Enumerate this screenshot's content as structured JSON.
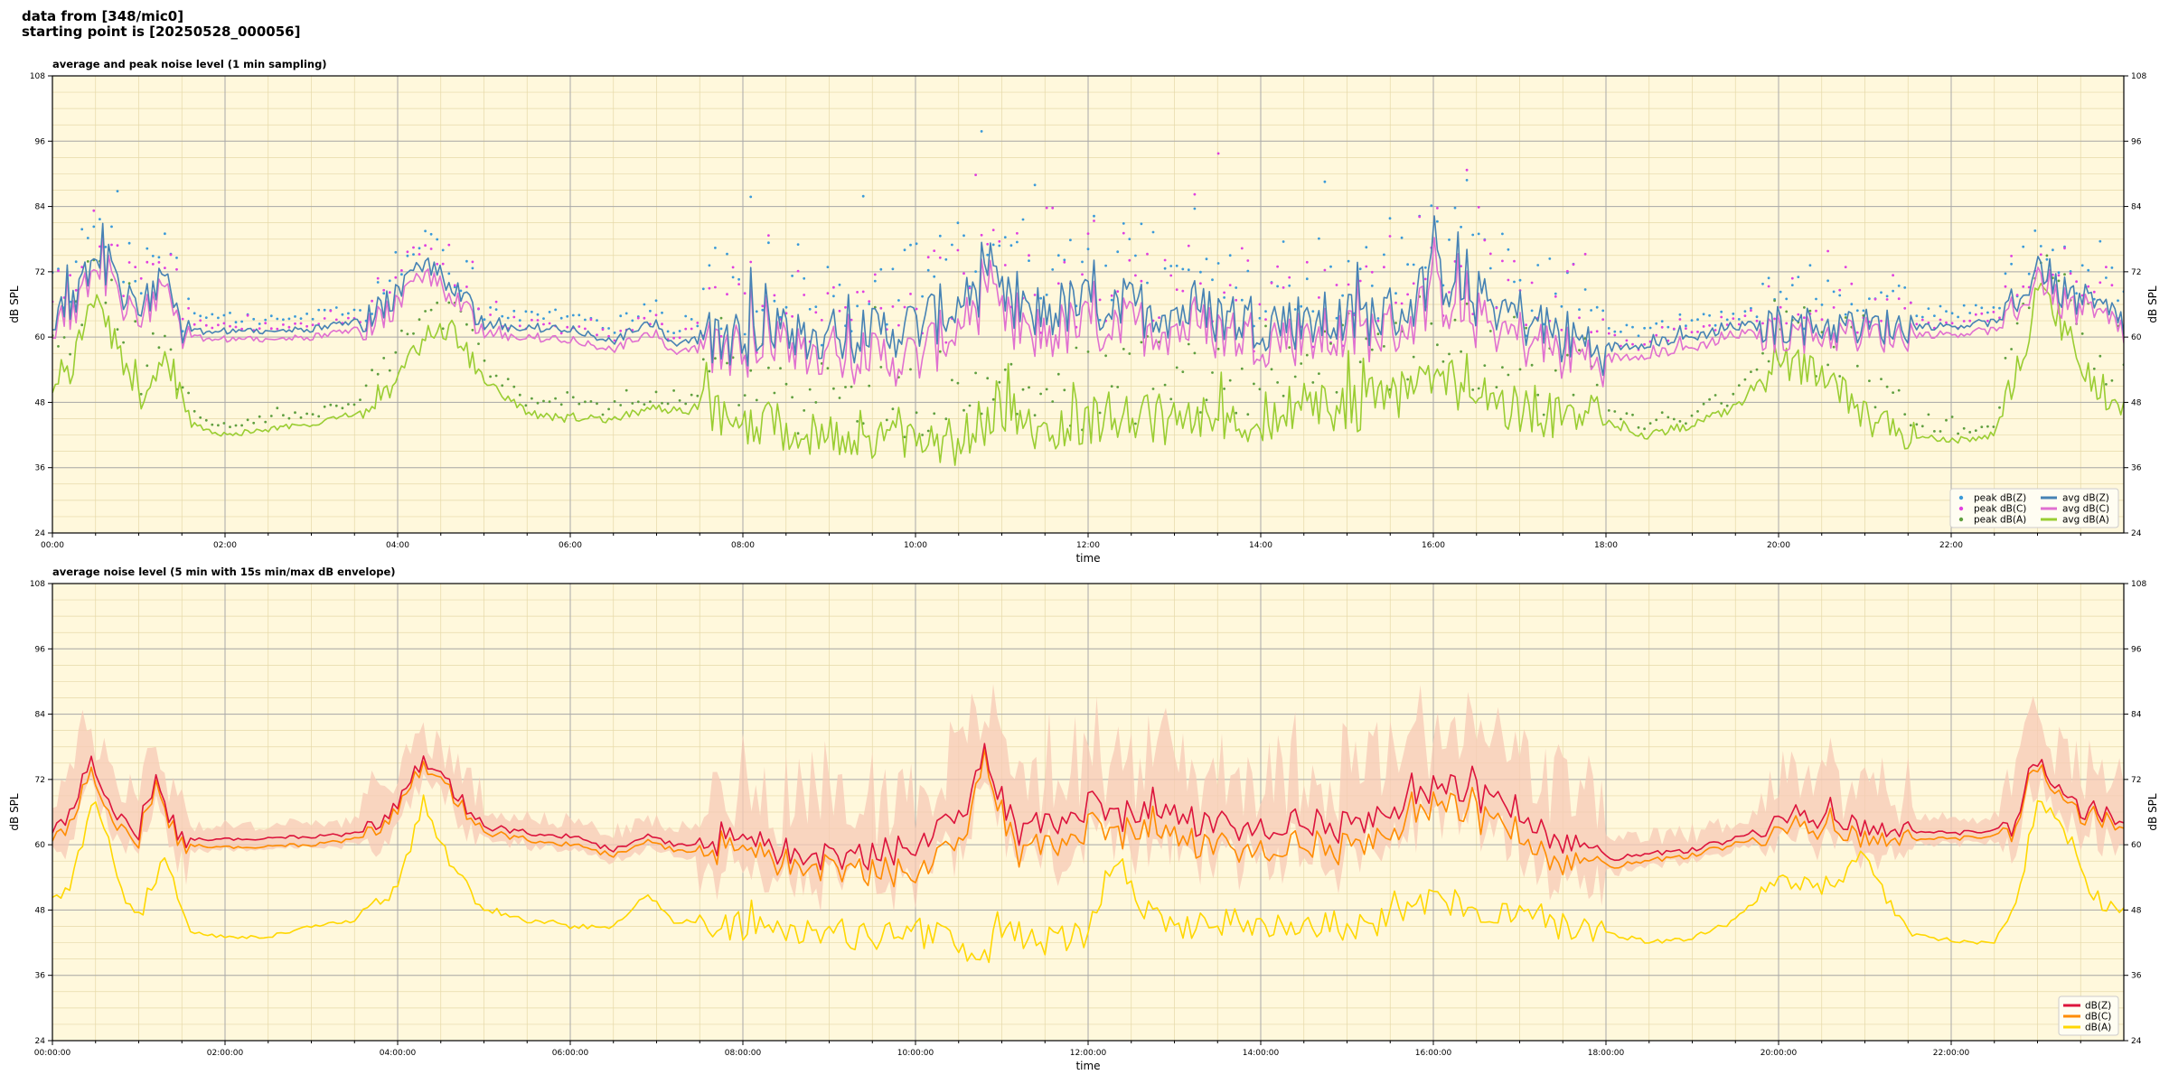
{
  "header": {
    "line1": "data from [348/mic0]",
    "line2": "starting point is [20250528_000056]"
  },
  "colors": {
    "background": "#fff8dc",
    "peak_z": "#3a9ad9",
    "peak_c": "#e040e0",
    "peak_a": "#5f9f3f",
    "avg_z": "#4682b4",
    "avg_c": "#e070d0",
    "avg_a": "#9acd32",
    "dbz": "#dc143c",
    "dbc": "#ff8c00",
    "dba": "#ffd700",
    "envelope": "#f7c9b6"
  },
  "chart_data": [
    {
      "type": "line",
      "title": "average and peak noise level (1 min sampling)",
      "xlabel": "time",
      "ylabel": "dB SPL",
      "ylabel_right": "dB SPL",
      "xlim": [
        0,
        24
      ],
      "ylim": [
        24,
        108
      ],
      "yticks": [
        "24",
        "36",
        "48",
        "60",
        "72",
        "84",
        "96",
        "108"
      ],
      "xticks": [
        "00:00",
        "02:00",
        "04:00",
        "06:00",
        "08:00",
        "10:00",
        "12:00",
        "14:00",
        "16:00",
        "18:00",
        "20:00",
        "22:00"
      ],
      "grid": true,
      "legend_position": "lower-right",
      "legend_columns": 2,
      "series": [
        {
          "name": "peak dB(Z)",
          "kind": "points",
          "color_key": "peak_z",
          "base_series": "avg dB(Z)",
          "offset_db": 4
        },
        {
          "name": "peak dB(C)",
          "kind": "points",
          "color_key": "peak_c",
          "base_series": "avg dB(C)",
          "offset_db": 4
        },
        {
          "name": "peak dB(A)",
          "kind": "points",
          "color_key": "peak_a",
          "base_series": "avg dB(A)",
          "offset_db": 3
        },
        {
          "name": "avg dB(Z)",
          "kind": "line",
          "color_key": "avg_z",
          "x": [
            0,
            0.3,
            0.5,
            0.7,
            1.0,
            1.3,
            1.5,
            2.0,
            3.0,
            3.6,
            4.0,
            4.3,
            4.6,
            5.0,
            6.0,
            6.5,
            6.9,
            7.2,
            8.0,
            9.0,
            10.0,
            10.5,
            10.8,
            11.2,
            12.0,
            13.0,
            14.0,
            15.0,
            15.7,
            16.0,
            16.5,
            17.0,
            17.5,
            18.0,
            19.0,
            19.5,
            20.0,
            21.0,
            22.0,
            22.7,
            23.0,
            23.3,
            24.0
          ],
          "y": [
            62,
            68,
            76,
            70,
            65,
            72,
            61,
            61,
            61.5,
            63,
            68,
            74,
            70,
            62,
            61.5,
            59,
            63,
            59,
            60,
            60,
            62,
            66,
            70,
            64,
            66,
            65,
            63,
            63,
            65,
            72,
            67,
            64,
            60,
            58,
            60,
            62,
            62,
            62,
            62,
            63,
            74,
            68,
            63
          ]
        },
        {
          "name": "avg dB(C)",
          "kind": "line",
          "color_key": "avg_c",
          "x": [
            0,
            0.3,
            0.5,
            0.7,
            1.0,
            1.3,
            1.5,
            2.0,
            3.0,
            3.6,
            4.0,
            4.3,
            4.6,
            5.0,
            6.0,
            6.5,
            6.9,
            7.2,
            8.0,
            9.0,
            10.0,
            10.5,
            10.8,
            11.2,
            12.0,
            13.0,
            14.0,
            15.0,
            15.7,
            16.0,
            16.5,
            17.0,
            17.5,
            18.0,
            19.0,
            19.5,
            20.0,
            21.0,
            22.0,
            22.7,
            23.0,
            23.3,
            24.0
          ],
          "y": [
            60.5,
            66,
            74,
            68,
            63,
            70,
            60,
            59.5,
            60,
            61.5,
            66,
            72,
            68,
            60.5,
            59.5,
            57.5,
            61,
            57.5,
            58,
            57,
            56,
            62,
            67,
            60,
            62,
            62,
            60,
            60,
            62,
            68,
            63,
            60,
            57,
            56,
            58,
            60.5,
            60.5,
            60.5,
            60.5,
            61.5,
            72,
            66,
            61.5
          ]
        },
        {
          "name": "avg dB(A)",
          "kind": "line",
          "color_key": "avg_a",
          "x": [
            0,
            0.2,
            0.5,
            0.8,
            1.0,
            1.3,
            1.6,
            2.0,
            2.5,
            3.0,
            3.5,
            4.0,
            4.3,
            4.6,
            5.0,
            5.5,
            6.0,
            6.5,
            7.0,
            7.5,
            8.0,
            8.5,
            9.0,
            9.5,
            10.0,
            10.5,
            10.8,
            11.0,
            11.5,
            12.0,
            12.5,
            13.0,
            13.5,
            14.0,
            14.5,
            15.0,
            15.5,
            16.0,
            16.5,
            17.0,
            17.5,
            18.0,
            18.5,
            19.0,
            19.5,
            20.0,
            20.5,
            21.0,
            21.5,
            22.0,
            22.5,
            22.8,
            23.0,
            23.3,
            23.6,
            24.0
          ],
          "y": [
            50,
            54,
            68,
            56,
            48,
            58,
            44,
            42,
            43,
            44,
            46,
            52,
            60,
            62,
            52,
            46,
            45,
            45,
            47,
            46,
            45,
            43,
            43,
            42,
            43,
            40,
            45,
            48,
            43,
            45,
            45,
            45,
            44,
            45,
            47,
            47,
            49,
            53,
            49,
            47,
            46,
            44,
            42,
            44,
            47,
            55,
            54,
            45,
            42,
            41,
            42,
            55,
            68,
            62,
            52,
            47
          ]
        }
      ]
    },
    {
      "type": "line",
      "title": "average noise level (5 min with 15s min/max dB envelope)",
      "xlabel": "time",
      "ylabel": "dB SPL",
      "ylabel_right": "dB SPL",
      "xlim": [
        0,
        24
      ],
      "ylim": [
        24,
        108
      ],
      "yticks": [
        "24",
        "36",
        "48",
        "60",
        "72",
        "84",
        "96",
        "108"
      ],
      "xticks": [
        "00:00:00",
        "02:00:00",
        "04:00:00",
        "06:00:00",
        "08:00:00",
        "10:00:00",
        "12:00:00",
        "14:00:00",
        "16:00:00",
        "18:00:00",
        "20:00:00",
        "22:00:00"
      ],
      "grid": true,
      "legend_position": "lower-right",
      "legend_columns": 1,
      "series": [
        {
          "name": "dB(Z)",
          "kind": "line",
          "color_key": "dbz",
          "x": [
            0,
            0.2,
            0.45,
            0.7,
            1.0,
            1.2,
            1.5,
            2.0,
            3.0,
            3.5,
            3.9,
            4.3,
            4.6,
            5.0,
            6.0,
            6.5,
            6.9,
            7.2,
            8.0,
            9.0,
            9.5,
            10.0,
            10.5,
            10.8,
            11.2,
            12.0,
            12.5,
            13.0,
            14.0,
            14.5,
            15.0,
            15.5,
            16.0,
            16.5,
            17.0,
            17.5,
            18.0,
            19.0,
            19.5,
            20.0,
            20.5,
            21.0,
            22.0,
            22.7,
            23.0,
            23.3,
            24.0
          ],
          "y": [
            62,
            66,
            76,
            66,
            62,
            71,
            61,
            61,
            61.5,
            62,
            65,
            76,
            71,
            63,
            61.5,
            59,
            62,
            60,
            60,
            58,
            58,
            60,
            64,
            76,
            62,
            67,
            65,
            65,
            63,
            64,
            63,
            66,
            71,
            69,
            64,
            61,
            57.5,
            59,
            61,
            64,
            65,
            63,
            62,
            63,
            76,
            68,
            64
          ]
        },
        {
          "name": "dB(C)",
          "kind": "line",
          "color_key": "dbc",
          "x": [
            0,
            0.2,
            0.45,
            0.7,
            1.0,
            1.2,
            1.5,
            2.0,
            3.0,
            3.5,
            3.9,
            4.3,
            4.6,
            5.0,
            6.0,
            6.5,
            6.9,
            7.2,
            8.0,
            9.0,
            9.5,
            10.0,
            10.5,
            10.8,
            11.2,
            12.0,
            12.5,
            13.0,
            14.0,
            14.5,
            15.0,
            15.5,
            16.0,
            16.5,
            17.0,
            17.5,
            18.0,
            19.0,
            19.5,
            20.0,
            20.5,
            21.0,
            22.0,
            22.7,
            23.0,
            23.3,
            24.0
          ],
          "y": [
            60.5,
            64,
            74,
            64,
            60.5,
            70,
            60,
            59.5,
            60,
            61,
            64,
            75,
            70,
            62,
            60,
            58,
            61,
            59,
            58,
            56,
            55,
            55,
            59,
            75,
            58,
            63,
            62,
            61,
            59,
            60,
            59,
            62,
            68,
            65,
            60,
            57,
            56,
            58,
            60,
            62,
            63,
            61,
            61,
            62,
            75,
            67,
            63
          ]
        },
        {
          "name": "dB(A)",
          "kind": "line",
          "color_key": "dba",
          "x": [
            0,
            0.2,
            0.5,
            0.8,
            1.0,
            1.3,
            1.6,
            2.0,
            2.5,
            3.0,
            3.5,
            4.0,
            4.3,
            4.6,
            5.0,
            5.5,
            6.0,
            6.5,
            6.9,
            7.2,
            8.0,
            8.5,
            9.0,
            9.5,
            10.0,
            10.5,
            10.8,
            11.0,
            11.5,
            12.0,
            12.3,
            12.6,
            13.0,
            13.5,
            14.0,
            14.5,
            15.0,
            15.5,
            16.0,
            16.5,
            17.0,
            17.5,
            18.0,
            18.5,
            19.0,
            19.5,
            20.0,
            20.5,
            21.0,
            21.5,
            22.0,
            22.5,
            22.8,
            23.0,
            23.3,
            23.6,
            24.0
          ],
          "y": [
            50,
            53,
            68,
            52,
            47,
            57,
            44,
            43,
            43,
            45,
            46,
            52,
            68,
            57,
            48,
            46,
            45,
            45,
            51,
            46,
            45,
            44,
            44,
            43,
            44,
            42,
            39,
            45,
            42,
            44,
            58,
            48,
            45,
            46,
            45,
            46,
            45,
            46,
            50,
            48,
            47,
            45,
            44,
            42,
            43,
            46,
            54,
            52,
            57,
            44,
            42,
            42,
            52,
            69,
            63,
            51,
            47
          ]
        }
      ],
      "envelope": {
        "color_key": "envelope",
        "base_series": "dB(Z)"
      }
    }
  ]
}
